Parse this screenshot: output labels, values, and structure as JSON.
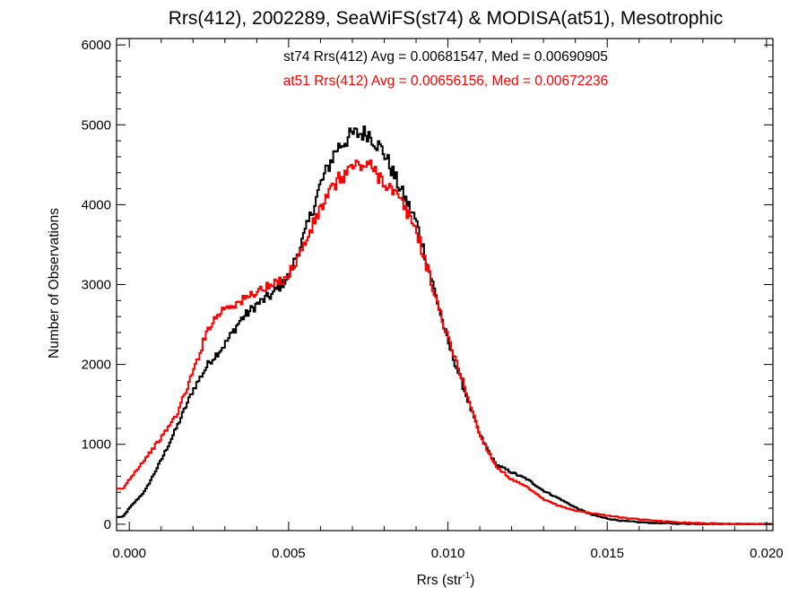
{
  "chart_data": {
    "type": "line",
    "title": "Rrs(412), 2002289, SeaWiFS(st74) & MODISA(at51), Mesotrophic",
    "xlabel_main": "Rrs (str",
    "xlabel_sup": "-1",
    "xlabel_close": ")",
    "ylabel": "Number of Observations",
    "xlim": [
      -0.0004,
      0.0202
    ],
    "ylim": [
      -80,
      6080
    ],
    "xticks": [
      0.0,
      0.005,
      0.01,
      0.015,
      0.02
    ],
    "xtick_labels": [
      "0.000",
      "0.005",
      "0.010",
      "0.015",
      "0.020"
    ],
    "yticks": [
      0,
      1000,
      2000,
      3000,
      4000,
      5000,
      6000
    ],
    "ytick_labels": [
      "0",
      "1000",
      "2000",
      "3000",
      "4000",
      "5000",
      "6000"
    ],
    "grid": false,
    "annotations": [
      {
        "text": "st74 Rrs(412) Avg = 0.00681547, Med = 0.00690905",
        "color": "#000000"
      },
      {
        "text": "at51 Rrs(412) Avg = 0.00656156, Med = 0.00672236",
        "color": "#ff0000"
      }
    ],
    "series": [
      {
        "color": "#000000",
        "points": [
          [
            -0.0002,
            90
          ],
          [
            0.0,
            200
          ],
          [
            0.0005,
            420
          ],
          [
            0.001,
            800
          ],
          [
            0.0015,
            1220
          ],
          [
            0.002,
            1680
          ],
          [
            0.0025,
            2020
          ],
          [
            0.003,
            2250
          ],
          [
            0.0035,
            2560
          ],
          [
            0.004,
            2750
          ],
          [
            0.0045,
            2880
          ],
          [
            0.005,
            3100
          ],
          [
            0.0055,
            3620
          ],
          [
            0.006,
            4250
          ],
          [
            0.0065,
            4700
          ],
          [
            0.007,
            4880
          ],
          [
            0.0075,
            4900
          ],
          [
            0.008,
            4650
          ],
          [
            0.0085,
            4200
          ],
          [
            0.009,
            3800
          ],
          [
            0.0095,
            3050
          ],
          [
            0.01,
            2280
          ],
          [
            0.0105,
            1700
          ],
          [
            0.011,
            1120
          ],
          [
            0.0115,
            750
          ],
          [
            0.012,
            650
          ],
          [
            0.0125,
            560
          ],
          [
            0.013,
            420
          ],
          [
            0.0135,
            320
          ],
          [
            0.014,
            210
          ],
          [
            0.0145,
            120
          ],
          [
            0.015,
            70
          ],
          [
            0.0155,
            40
          ],
          [
            0.016,
            25
          ],
          [
            0.0165,
            15
          ],
          [
            0.017,
            10
          ],
          [
            0.0175,
            5
          ],
          [
            0.018,
            3
          ],
          [
            0.0185,
            2
          ],
          [
            0.019,
            1
          ],
          [
            0.0195,
            1
          ],
          [
            0.02,
            0
          ]
        ]
      },
      {
        "color": "#ff0000",
        "points": [
          [
            -0.0002,
            440
          ],
          [
            0.0,
            560
          ],
          [
            0.0005,
            820
          ],
          [
            0.001,
            1080
          ],
          [
            0.0015,
            1380
          ],
          [
            0.002,
            1900
          ],
          [
            0.0025,
            2480
          ],
          [
            0.003,
            2720
          ],
          [
            0.0035,
            2780
          ],
          [
            0.004,
            2920
          ],
          [
            0.0045,
            2980
          ],
          [
            0.005,
            3120
          ],
          [
            0.0055,
            3500
          ],
          [
            0.006,
            3950
          ],
          [
            0.0065,
            4280
          ],
          [
            0.007,
            4480
          ],
          [
            0.0075,
            4500
          ],
          [
            0.008,
            4300
          ],
          [
            0.0085,
            4050
          ],
          [
            0.009,
            3700
          ],
          [
            0.0095,
            3000
          ],
          [
            0.01,
            2330
          ],
          [
            0.0105,
            1760
          ],
          [
            0.011,
            1120
          ],
          [
            0.0115,
            730
          ],
          [
            0.012,
            560
          ],
          [
            0.0125,
            460
          ],
          [
            0.013,
            310
          ],
          [
            0.0135,
            230
          ],
          [
            0.014,
            170
          ],
          [
            0.0145,
            140
          ],
          [
            0.015,
            110
          ],
          [
            0.0155,
            80
          ],
          [
            0.016,
            60
          ],
          [
            0.0165,
            45
          ],
          [
            0.017,
            30
          ],
          [
            0.0175,
            20
          ],
          [
            0.018,
            12
          ],
          [
            0.0185,
            8
          ],
          [
            0.019,
            5
          ],
          [
            0.0195,
            3
          ],
          [
            0.02,
            1
          ]
        ]
      }
    ]
  }
}
